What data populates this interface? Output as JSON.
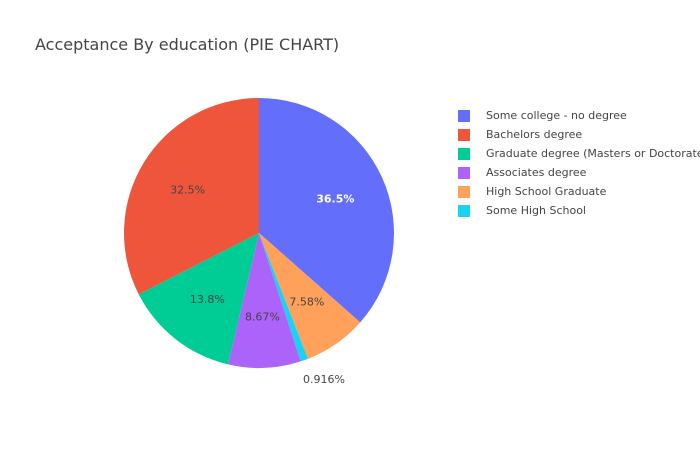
{
  "chart_data": {
    "type": "pie",
    "title": "Acceptance By education (PIE CHART)",
    "slices": [
      {
        "label": "Some college - no degree",
        "value": 36.5,
        "text": "36.5%",
        "color": "#636efa"
      },
      {
        "label": "High School Graduate",
        "value": 7.58,
        "text": "7.58%",
        "color": "#ffa15a"
      },
      {
        "label": "Some High School",
        "value": 0.916,
        "text": "0.916%",
        "color": "#19d3f3"
      },
      {
        "label": "Associates degree",
        "value": 8.67,
        "text": "8.67%",
        "color": "#ab63fa"
      },
      {
        "label": "Graduate degree (Masters or Doctorate)",
        "value": 13.8,
        "text": "13.8%",
        "color": "#00cc96"
      },
      {
        "label": "Bachelors degree",
        "value": 32.5,
        "text": "32.5%",
        "color": "#ef553b"
      }
    ],
    "legend": [
      {
        "label": "Some college - no degree",
        "color": "#636efa"
      },
      {
        "label": "Bachelors degree",
        "color": "#ef553b"
      },
      {
        "label": "Graduate degree (Masters or Doctorate)",
        "color": "#00cc96"
      },
      {
        "label": "Associates degree",
        "color": "#ab63fa"
      },
      {
        "label": "High School Graduate",
        "color": "#ffa15a"
      },
      {
        "label": "Some High School",
        "color": "#19d3f3"
      }
    ],
    "legend_placement": "right"
  }
}
